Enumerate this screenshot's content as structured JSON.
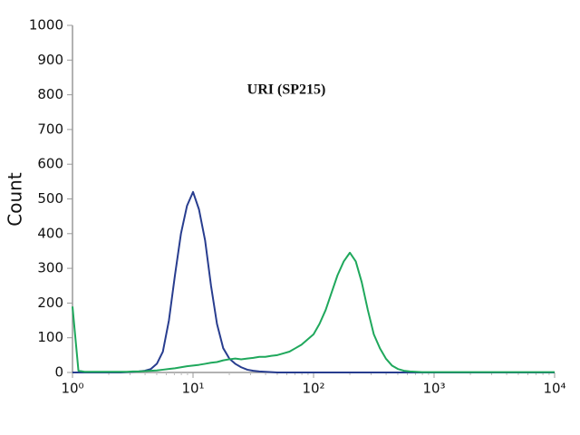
{
  "chart_data": {
    "type": "line",
    "title": "URI (SP215)",
    "y_label": "Count",
    "xscale": "log",
    "x": [
      1,
      1.12,
      1.26,
      1.41,
      1.58,
      1.78,
      2,
      2.24,
      2.51,
      2.82,
      3.16,
      3.55,
      3.98,
      4.47,
      5.01,
      5.62,
      6.31,
      7.08,
      7.94,
      8.91,
      10,
      11.2,
      12.6,
      14.1,
      15.8,
      17.8,
      20,
      22.4,
      25.1,
      28.2,
      31.6,
      35.5,
      39.8,
      44.7,
      50.1,
      56.2,
      63.1,
      70.8,
      79.4,
      89.1,
      100,
      112,
      126,
      141,
      158,
      178,
      200,
      224,
      251,
      282,
      316,
      355,
      398,
      447,
      501,
      562,
      631,
      708,
      794,
      891,
      1000,
      3162,
      10000
    ],
    "series": [
      {
        "color": "#283d8f",
        "values": [
          0,
          0,
          0,
          0,
          0,
          0,
          0,
          0,
          0,
          1,
          2,
          3,
          5,
          10,
          25,
          60,
          150,
          280,
          400,
          480,
          520,
          470,
          380,
          250,
          140,
          70,
          40,
          25,
          15,
          8,
          5,
          3,
          2,
          1,
          0,
          0,
          0,
          0,
          0,
          0,
          0,
          0,
          0,
          0,
          0,
          0,
          0,
          0,
          0,
          0,
          0,
          0,
          0,
          0,
          0,
          0,
          0,
          0,
          0,
          0,
          0,
          0,
          0
        ]
      },
      {
        "color": "#1fa85c",
        "values": [
          190,
          5,
          2,
          2,
          2,
          2,
          2,
          2,
          2,
          2,
          3,
          3,
          4,
          5,
          6,
          8,
          10,
          12,
          15,
          18,
          20,
          22,
          25,
          28,
          30,
          35,
          38,
          40,
          38,
          40,
          42,
          45,
          45,
          48,
          50,
          55,
          60,
          70,
          80,
          95,
          110,
          140,
          180,
          230,
          280,
          320,
          345,
          320,
          260,
          180,
          110,
          70,
          40,
          20,
          10,
          5,
          3,
          2,
          1,
          1,
          1,
          1,
          1
        ]
      }
    ],
    "xlim": [
      1,
      10000
    ],
    "xticks": [
      {
        "value": 1,
        "label": "10⁰"
      },
      {
        "value": 10,
        "label": "10¹"
      },
      {
        "value": 100,
        "label": "10²"
      },
      {
        "value": 1000,
        "label": "10³"
      },
      {
        "value": 10000,
        "label": "10⁴"
      }
    ],
    "ylim": [
      0,
      1000
    ],
    "yticks": [
      0,
      100,
      200,
      300,
      400,
      500,
      600,
      700,
      800,
      900,
      1000
    ]
  }
}
